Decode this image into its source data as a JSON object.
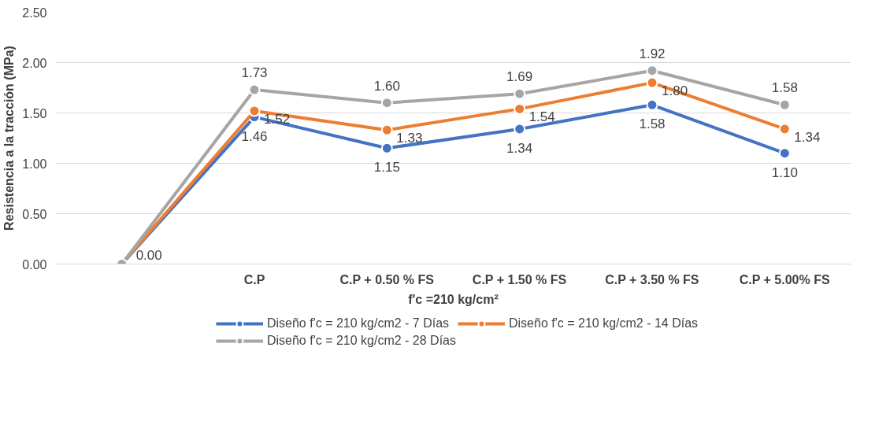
{
  "chart_data": {
    "type": "line",
    "xlabel": "f'c =210 kg/cm²",
    "ylabel": "Resistencia a la tracción (MPa)",
    "categories": [
      null,
      "C.P",
      "C.P + 0.50 % FS",
      "C.P + 1.50 % FS",
      "C.P + 3.50 % FS",
      "C.P + 5.00% FS"
    ],
    "series": [
      {
        "name": "Diseño f'c = 210 kg/cm2 - 7 Días",
        "color": "#4472c4",
        "values": [
          0.0,
          1.46,
          1.15,
          1.34,
          1.58,
          1.1
        ],
        "value_labels": [
          "0.00",
          "1.46",
          "1.15",
          "1.34",
          "1.58",
          "1.10"
        ]
      },
      {
        "name": "Diseño f'c = 210 kg/cm2 - 14 Días",
        "color": "#ed7d31",
        "values": [
          0.0,
          1.52,
          1.33,
          1.54,
          1.8,
          1.34
        ],
        "value_labels": [
          null,
          "1.52",
          "1.33",
          "1.54",
          "1.80",
          "1.34"
        ]
      },
      {
        "name": "Diseño f'c = 210 kg/cm2 - 28 Días",
        "color": "#a5a5a5",
        "values": [
          0.0,
          1.73,
          1.6,
          1.69,
          1.92,
          1.58
        ],
        "value_labels": [
          null,
          "1.73",
          "1.60",
          "1.69",
          "1.92",
          "1.58"
        ]
      }
    ],
    "ylim": [
      0,
      2.5
    ],
    "yticks": [
      {
        "value": 0,
        "label": "0.00"
      },
      {
        "value": 0.5,
        "label": "0.50"
      },
      {
        "value": 1,
        "label": "1.00"
      },
      {
        "value": 1.5,
        "label": "1.50"
      },
      {
        "value": 2,
        "label": "2.00"
      },
      {
        "value": 2.5,
        "label": "2.50"
      }
    ],
    "grid": "y",
    "legend": "bottom",
    "marker": "circle",
    "line_style": "solid"
  }
}
